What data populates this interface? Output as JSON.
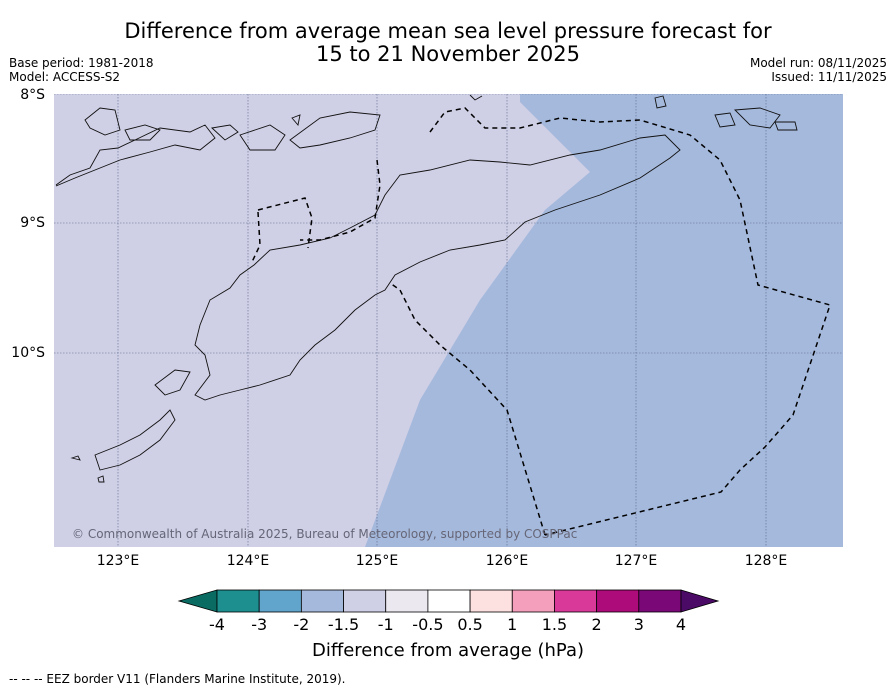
{
  "title_line1": "Difference from average mean sea level pressure forecast for",
  "title_line2": "15 to 21 November 2025",
  "base_period": "Base period: 1981-2018",
  "model": "Model: ACCESS-S2",
  "model_run": "Model run: 08/11/2025",
  "issued": "Issued: 11/11/2025",
  "lat_labels": [
    "8°S",
    "9°S",
    "10°S"
  ],
  "lon_labels": [
    "123°E",
    "124°E",
    "125°E",
    "126°E",
    "127°E",
    "128°E"
  ],
  "copyright": "© Commonwealth of Australia 2025, Bureau of Meteorology, supported by COSPPac",
  "colorbar": {
    "title": "Difference from average (hPa)",
    "tick_labels": [
      "-4",
      "-3",
      "-2",
      "-1.5",
      "-1",
      "-0.5",
      "0.5",
      "1",
      "1.5",
      "2",
      "3",
      "4"
    ],
    "colors": [
      "#1d8f8f",
      "#62a5cc",
      "#a5b9dc",
      "#cfcfe6",
      "#ece8f0",
      "#ffffff",
      "#fde0e0",
      "#f4a0bc",
      "#d93a9a",
      "#ad0a7a",
      "#7a0877"
    ],
    "under_color": "#0a6b63",
    "over_color": "#4b0a66"
  },
  "map_colors": {
    "category_minus_1_to_minus_1_5": "#cfcfe6",
    "category_minus_1_5_to_minus_2": "#a5b9dc"
  },
  "footer": "--  --  -- EEZ border V11 (Flanders Marine Institute, 2019)."
}
